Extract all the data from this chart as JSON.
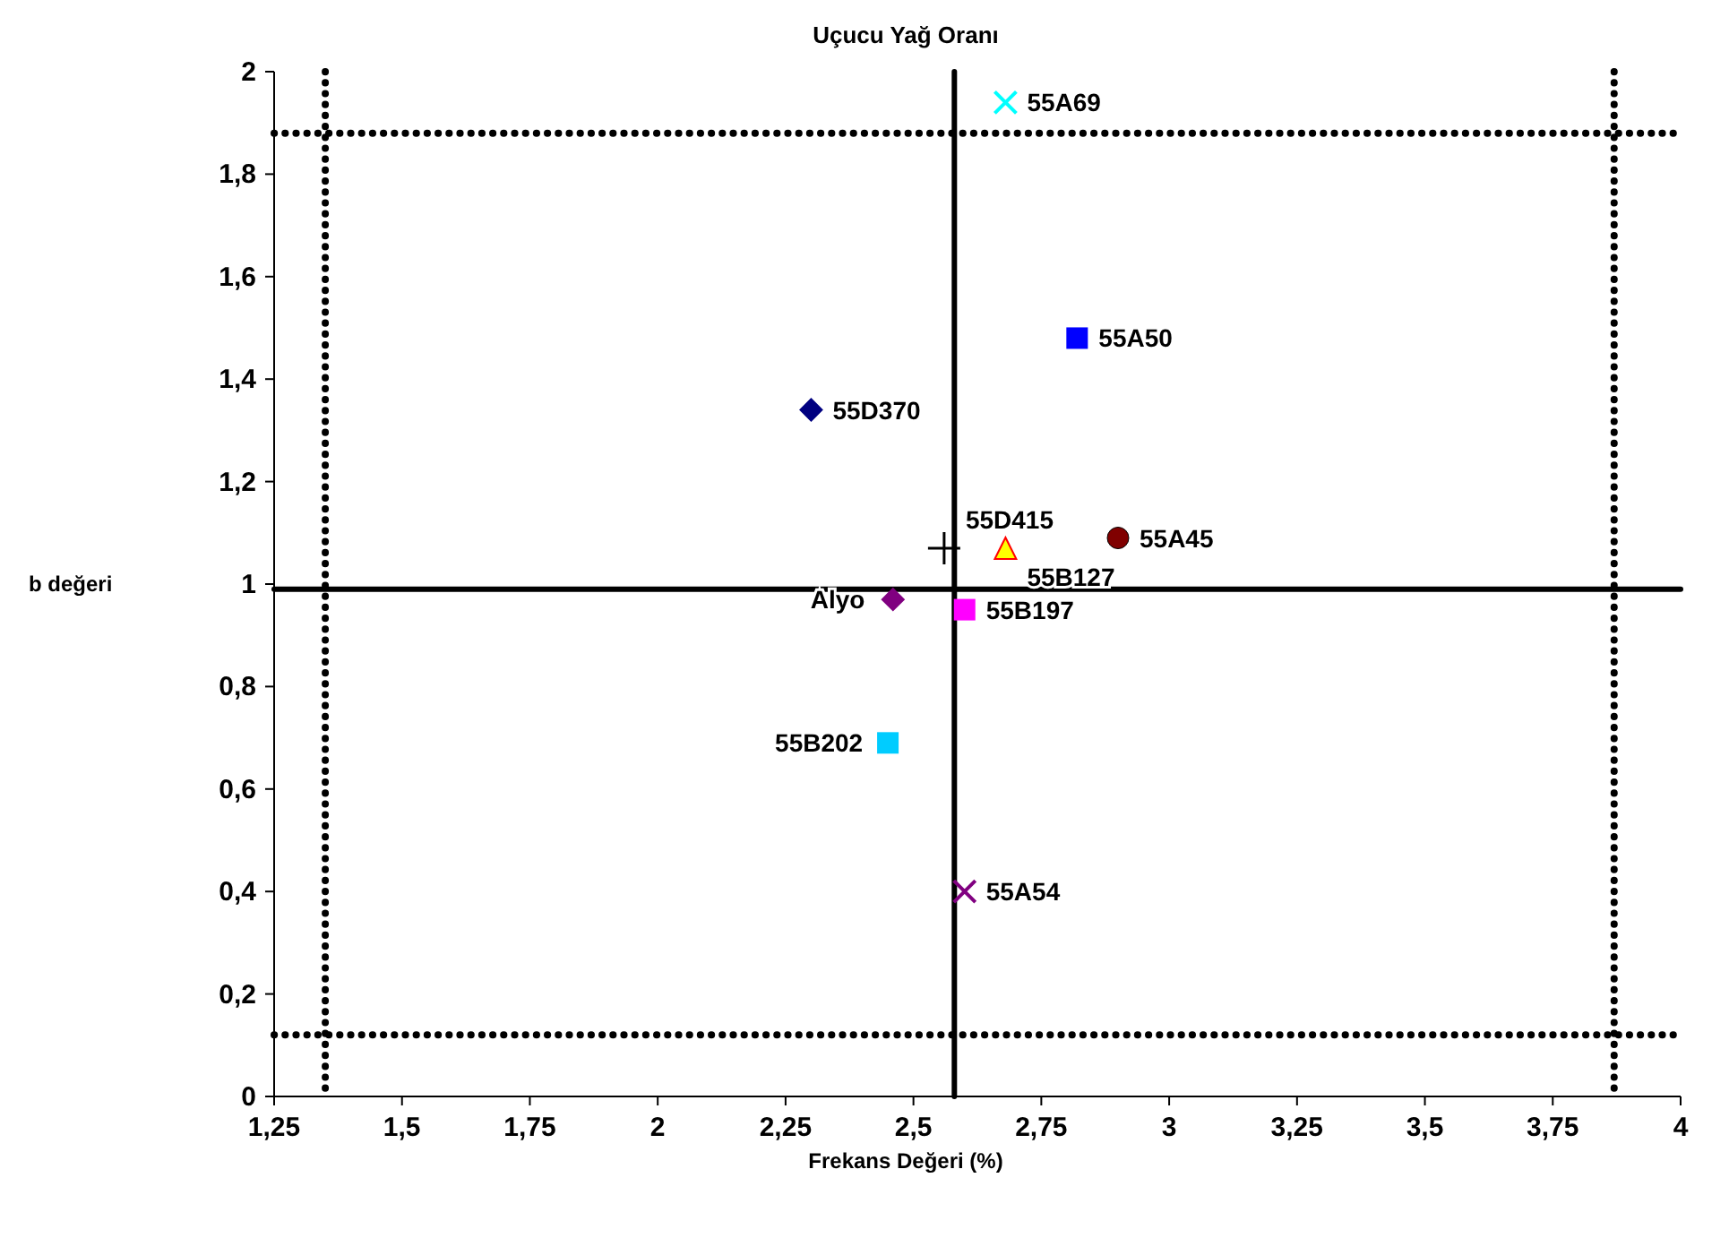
{
  "chart_data": {
    "type": "scatter",
    "title": "Uçucu Yağ Oranı",
    "xlabel": "Frekans Değeri (%)",
    "ylabel": "b değeri",
    "xlim": [
      1.25,
      4
    ],
    "ylim": [
      0,
      2
    ],
    "xticks": [
      {
        "value": 1.25,
        "label": "1,25"
      },
      {
        "value": 1.5,
        "label": "1,5"
      },
      {
        "value": 1.75,
        "label": "1,75"
      },
      2,
      {
        "value": 2.25,
        "label": "2,25"
      },
      {
        "value": 2.5,
        "label": "2,5"
      },
      {
        "value": 2.75,
        "label": "2,75"
      },
      3,
      {
        "value": 3.25,
        "label": "3,25"
      },
      {
        "value": 3.5,
        "label": "3,5"
      },
      {
        "value": 3.75,
        "label": "3,75"
      },
      4
    ],
    "yticks": [
      0,
      {
        "value": 0.2,
        "label": "0,2"
      },
      {
        "value": 0.4,
        "label": "0,4"
      },
      {
        "value": 0.6,
        "label": "0,6"
      },
      {
        "value": 0.8,
        "label": "0,8"
      },
      1,
      {
        "value": 1.2,
        "label": "1,2"
      },
      {
        "value": 1.4,
        "label": "1,4"
      },
      {
        "value": 1.6,
        "label": "1,6"
      },
      {
        "value": 1.8,
        "label": "1,8"
      },
      2
    ],
    "grid": false,
    "series": [
      {
        "name": "55A69",
        "color": "#00ffff",
        "marker": "cross",
        "x": [
          2.68
        ],
        "values": [
          1.94
        ]
      },
      {
        "name": "55A50",
        "color": "#0000ff",
        "marker": "square",
        "x": [
          2.82
        ],
        "values": [
          1.48
        ]
      },
      {
        "name": "55D370",
        "color": "#000080",
        "marker": "diamond",
        "x": [
          2.3
        ],
        "values": [
          1.34
        ]
      },
      {
        "name": "55D415",
        "color": "#000000",
        "marker": "plus",
        "x": [
          2.56
        ],
        "values": [
          1.07
        ]
      },
      {
        "name": "55B127",
        "color": "#ffff00",
        "marker": "triangle",
        "x": [
          2.68
        ],
        "values": [
          1.07
        ]
      },
      {
        "name": "55A45",
        "color": "#800000",
        "marker": "circle",
        "x": [
          2.9
        ],
        "values": [
          1.09
        ]
      },
      {
        "name": "Alyo",
        "color": "#800080",
        "marker": "diamond",
        "x": [
          2.46
        ],
        "values": [
          0.97
        ]
      },
      {
        "name": "55B197",
        "color": "#ff00ff",
        "marker": "square",
        "x": [
          2.6
        ],
        "values": [
          0.95
        ]
      },
      {
        "name": "55B202",
        "color": "#00ccff",
        "marker": "square",
        "x": [
          2.45
        ],
        "values": [
          0.69
        ]
      },
      {
        "name": "55A54",
        "color": "#800080",
        "marker": "cross",
        "x": [
          2.6
        ],
        "values": [
          0.4
        ]
      }
    ],
    "ref_lines": [
      {
        "axis": "x",
        "value": 2.58,
        "line_style": "solid"
      },
      {
        "axis": "y",
        "value": 0.99,
        "line_style": "solid"
      },
      {
        "axis": "x",
        "value": 1.35,
        "line_style": "dotted"
      },
      {
        "axis": "x",
        "value": 3.87,
        "line_style": "dotted"
      },
      {
        "axis": "y",
        "value": 1.88,
        "line_style": "dotted"
      },
      {
        "axis": "y",
        "value": 0.12,
        "line_style": "dotted"
      }
    ]
  }
}
